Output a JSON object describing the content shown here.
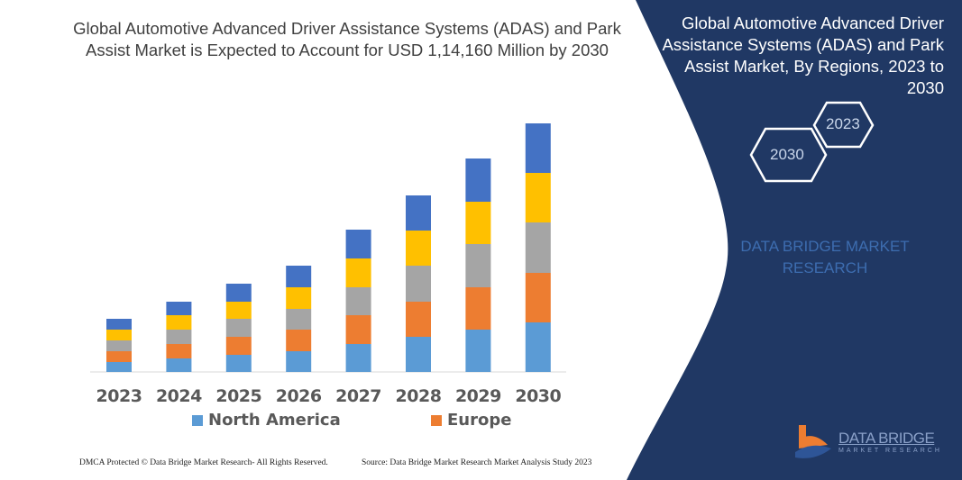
{
  "title": "Global Automotive Advanced Driver Assistance Systems (ADAS) and Park Assist Market is Expected to Account for USD 1,14,160 Million by 2030",
  "side_panel": {
    "title": "Global Automotive Advanced Driver Assistance Systems (ADAS) and Park Assist Market, By Regions, 2023 to 2030",
    "hex_labels": [
      "2023",
      "2030"
    ],
    "watermark": "DATA BRIDGE MARKET RESEARCH",
    "logo_text": "DATA BRIDGE",
    "logo_subtext": "MARKET RESEARCH",
    "panel_color": "#203864"
  },
  "footer": {
    "left": "DMCA Protected © Data Bridge Market Research-  All Rights Reserved.",
    "right": "Source: Data Bridge Market Research  Market Analysis Study 2023"
  },
  "chart_data": {
    "type": "bar",
    "stacked": true,
    "categories": [
      "2023",
      "2024",
      "2025",
      "2026",
      "2027",
      "2028",
      "2029",
      "2030"
    ],
    "series": [
      {
        "name": "North America",
        "color": "#5b9bd5",
        "values": [
          11,
          15,
          19,
          23,
          31,
          39,
          47,
          55
        ]
      },
      {
        "name": "Europe",
        "color": "#ed7d31",
        "values": [
          12,
          16,
          20,
          24,
          32,
          39,
          47,
          55
        ]
      },
      {
        "color": "#a5a5a5",
        "values": [
          12,
          16,
          20,
          23,
          31,
          40,
          48,
          56
        ]
      },
      {
        "color": "#ffc000",
        "values": [
          12,
          16,
          19,
          24,
          32,
          39,
          47,
          55
        ]
      },
      {
        "color": "#4472c4",
        "values": [
          12,
          15,
          20,
          24,
          32,
          39,
          48,
          55
        ]
      }
    ],
    "y_axis_shown": false,
    "grid": false,
    "legend_position": "bottom"
  }
}
